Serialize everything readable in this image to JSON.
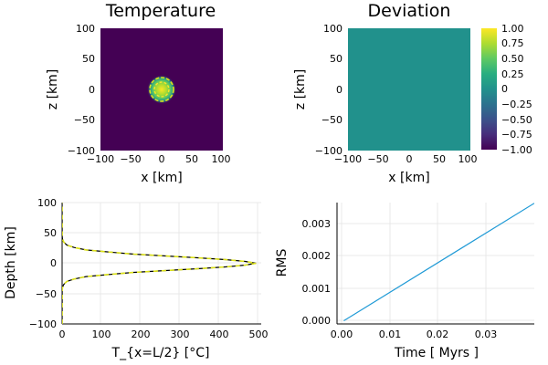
{
  "chart_data": [
    {
      "type": "heatmap",
      "title": "Temperature",
      "xlabel": "x [km]",
      "ylabel": "z [km]",
      "xlim": [
        -100,
        100
      ],
      "ylim": [
        -100,
        100
      ],
      "xticks": [
        "−100",
        "−50",
        "0",
        "50",
        "100"
      ],
      "yticks": [
        "100",
        "50",
        "0",
        "−50",
        "−100"
      ],
      "background_value": 0,
      "anomaly": {
        "center": [
          0,
          0
        ],
        "radius_km": 15,
        "peak_value": 1
      },
      "colormap": "viridis"
    },
    {
      "type": "heatmap",
      "title": "Deviation",
      "xlabel": "x [km]",
      "ylabel": "z [km]",
      "xlim": [
        -100,
        100
      ],
      "ylim": [
        -100,
        100
      ],
      "xticks": [
        "−100",
        "−50",
        "0",
        "50",
        "100"
      ],
      "yticks": [
        "100",
        "50",
        "0",
        "−50",
        "−100"
      ],
      "field_value": 0,
      "colorbar": {
        "range": [
          -1,
          1
        ],
        "ticks": [
          "1.00",
          "0.75",
          "0.50",
          "0.25",
          "0",
          "−0.25",
          "−0.50",
          "−0.75",
          "−1.00"
        ]
      },
      "colormap": "viridis"
    },
    {
      "type": "line",
      "xlabel": "T_{x=L/2} [°C]",
      "ylabel": "Depth [km]",
      "xlim": [
        0,
        500
      ],
      "ylim": [
        -100,
        100
      ],
      "xticks": [
        "0",
        "100",
        "200",
        "300",
        "400",
        "500"
      ],
      "yticks": [
        "100",
        "50",
        "0",
        "−50",
        "−100"
      ],
      "grid": true,
      "series": [
        {
          "style": "solid",
          "color": "#000000",
          "x": [
            0,
            0.2,
            1,
            4,
            12,
            30,
            60,
            110,
            180,
            260,
            340,
            410,
            460,
            487,
            460,
            410,
            340,
            260,
            180,
            110,
            60,
            30,
            12,
            4,
            1,
            0.2,
            0
          ],
          "y": [
            -100,
            -45,
            -40,
            -35,
            -30,
            -26,
            -22,
            -19,
            -15,
            -12,
            -9,
            -6,
            -3,
            0,
            3,
            6,
            9,
            12,
            15,
            19,
            22,
            26,
            30,
            35,
            40,
            45,
            100
          ]
        },
        {
          "style": "dashed",
          "color": "#dde318",
          "x": [
            0,
            0.2,
            1,
            4,
            12,
            30,
            60,
            110,
            180,
            260,
            340,
            410,
            460,
            487,
            460,
            410,
            340,
            260,
            180,
            110,
            60,
            30,
            12,
            4,
            1,
            0.2,
            0
          ],
          "y": [
            -100,
            -45,
            -40,
            -35,
            -30,
            -26,
            -22,
            -19,
            -15,
            -12,
            -9,
            -6,
            -3,
            0,
            3,
            6,
            9,
            12,
            15,
            19,
            22,
            26,
            30,
            35,
            40,
            45,
            100
          ]
        }
      ]
    },
    {
      "type": "line",
      "xlabel": "Time [ Myrs ]",
      "ylabel": "RMS",
      "xlim": [
        -0.0012,
        0.034
      ],
      "ylim": [
        -0.0001,
        0.0037
      ],
      "xticks": [
        "0.00",
        "0.01",
        "0.02",
        "0.03"
      ],
      "yticks": [
        "0.003",
        "0.002",
        "0.001",
        "0.000"
      ],
      "grid": true,
      "series": [
        {
          "color": "#1f9ad6",
          "x": [
            0.0,
            0.034
          ],
          "y": [
            0.0,
            0.00368
          ]
        }
      ]
    }
  ]
}
